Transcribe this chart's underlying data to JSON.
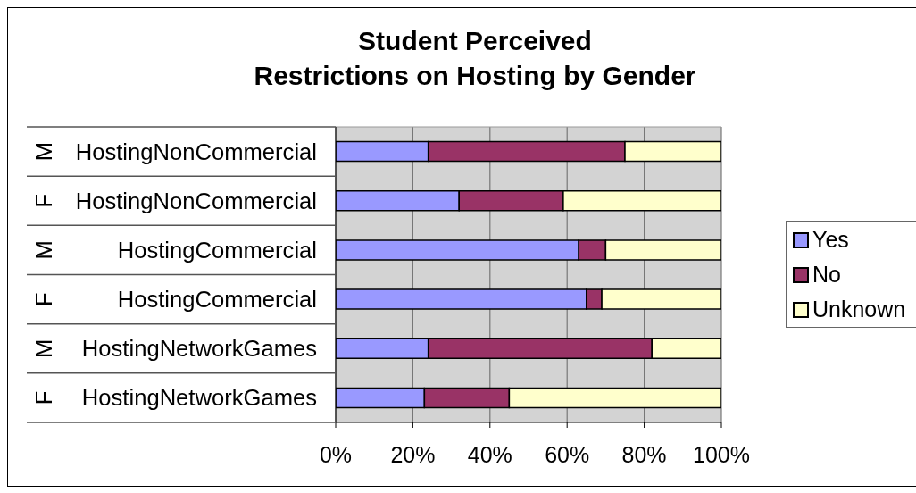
{
  "chart_data": {
    "type": "bar",
    "orientation": "horizontal",
    "stacked": true,
    "title": "Student Perceived\nRestrictions on Hosting by Gender",
    "categories": [
      "M HostingNonCommercial",
      "F HostingNonCommercial",
      "M HostingCommercial",
      "F HostingCommercial",
      "M HostingNetworkGames",
      "F HostingNetworkGames"
    ],
    "series": [
      {
        "name": "Yes",
        "color": "#9999ff",
        "values": [
          24,
          32,
          63,
          65,
          24,
          23
        ]
      },
      {
        "name": "No",
        "color": "#993366",
        "values": [
          51,
          27,
          7,
          4,
          58,
          22
        ]
      },
      {
        "name": "Unknown",
        "color": "#ffffcc",
        "values": [
          25,
          41,
          30,
          31,
          18,
          55
        ]
      }
    ],
    "xlim": [
      0,
      100
    ],
    "xticks": [
      {
        "value": 0,
        "label": "0%"
      },
      {
        "value": 20,
        "label": "20%"
      },
      {
        "value": 40,
        "label": "40%"
      },
      {
        "value": 60,
        "label": "60%"
      },
      {
        "value": 80,
        "label": "80%"
      },
      {
        "value": 100,
        "label": "100%"
      }
    ],
    "grid": "x",
    "legend": "right"
  }
}
